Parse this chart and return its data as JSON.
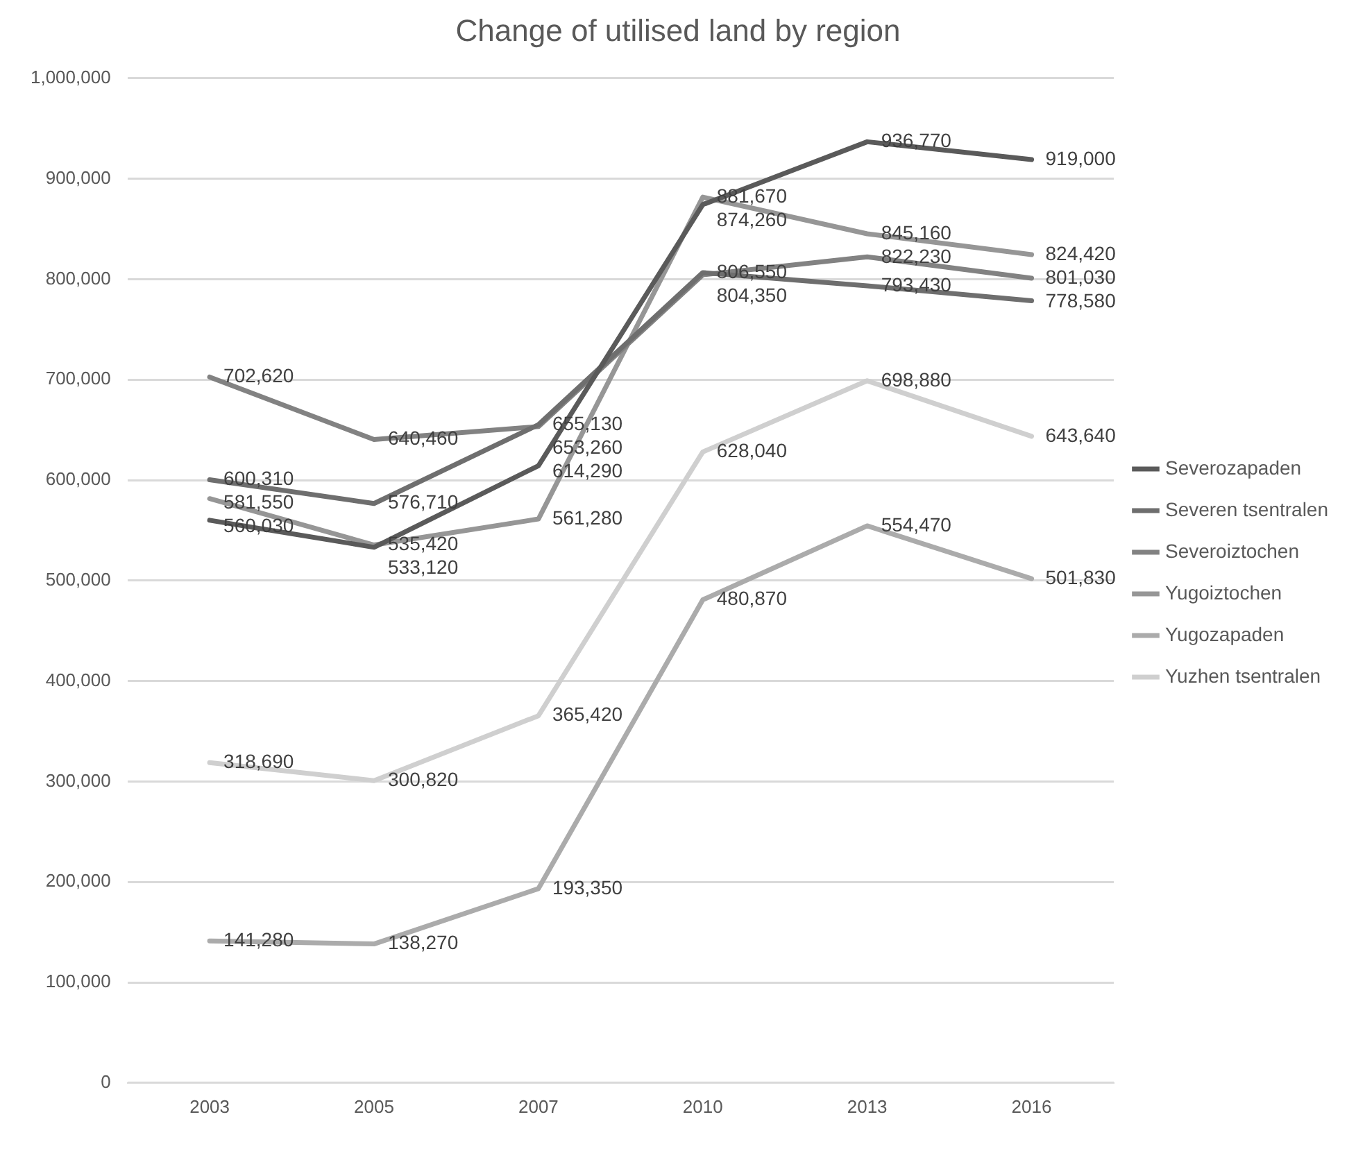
{
  "chart_data": {
    "type": "line",
    "title": "Change of utilised land by region",
    "categories": [
      "2003",
      "2005",
      "2007",
      "2010",
      "2013",
      "2016"
    ],
    "series": [
      {
        "name": "Severozapaden",
        "color": "#5a5a5a",
        "values": [
          560030,
          533120,
          614290,
          874260,
          936770,
          919000
        ],
        "value_labels": [
          "560,030",
          "533,120",
          "614,290",
          "874,260",
          "936,770",
          "919,000"
        ]
      },
      {
        "name": "Severen tsentralen",
        "color": "#6e6e6e",
        "values": [
          600310,
          576710,
          655130,
          806550,
          793430,
          778580
        ],
        "value_labels": [
          "600,310",
          "576,710",
          "655,130",
          "806,550",
          "793,430",
          "778,580"
        ]
      },
      {
        "name": "Severoiztochen",
        "color": "#828282",
        "values": [
          702620,
          640460,
          653260,
          804350,
          822230,
          801030
        ],
        "value_labels": [
          "702,620",
          "640,460",
          "653,260",
          "804,350",
          "822,230",
          "801,030"
        ]
      },
      {
        "name": "Yugoiztochen",
        "color": "#969696",
        "values": [
          581550,
          535420,
          561280,
          881670,
          845160,
          824420
        ],
        "value_labels": [
          "581,550",
          "535,420",
          "561,280",
          "881,670",
          "845,160",
          "824,420"
        ]
      },
      {
        "name": "Yugozapaden",
        "color": "#ababab",
        "values": [
          141280,
          138270,
          193350,
          480870,
          554470,
          501830
        ],
        "value_labels": [
          "141,280",
          "138,270",
          "193,350",
          "480,870",
          "554,470",
          "501,830"
        ]
      },
      {
        "name": "Yuzhen tsentralen",
        "color": "#cfcfcf",
        "values": [
          318690,
          300820,
          365420,
          628040,
          698880,
          643640
        ],
        "value_labels": [
          "318,690",
          "300,820",
          "365,420",
          "628,040",
          "698,880",
          "643,640"
        ]
      }
    ],
    "ylim": [
      0,
      1000000
    ],
    "yticks": [
      0,
      {
        "value": 100000,
        "label": "100,000"
      },
      {
        "value": 200000,
        "label": "200,000"
      },
      {
        "value": 300000,
        "label": "300,000"
      },
      {
        "value": 400000,
        "label": "400,000"
      },
      {
        "value": 500000,
        "label": "500,000"
      },
      {
        "value": 600000,
        "label": "600,000"
      },
      {
        "value": 700000,
        "label": "700,000"
      },
      {
        "value": 800000,
        "label": "800,000"
      },
      {
        "value": 900000,
        "label": "900,000"
      },
      {
        "value": 1000000,
        "label": "1,000,000"
      }
    ],
    "grid": "y",
    "legend": "right",
    "marker": "none",
    "line_style": "solid"
  }
}
